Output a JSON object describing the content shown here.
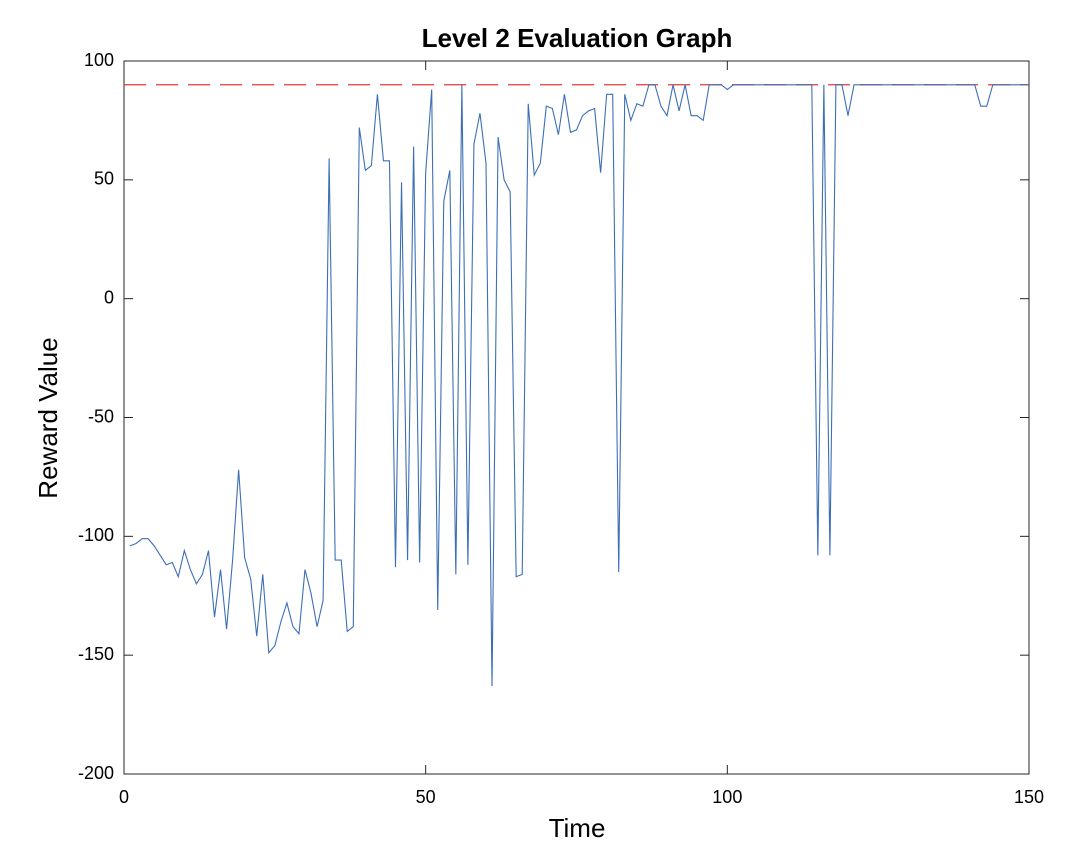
{
  "chart_data": {
    "type": "line",
    "title": "Level 2 Evaluation Graph",
    "x_label": "Time",
    "y_label": "Reward Value",
    "x": [
      1,
      2,
      3,
      4,
      5,
      6,
      7,
      8,
      9,
      10,
      11,
      12,
      13,
      14,
      15,
      16,
      17,
      18,
      19,
      20,
      21,
      22,
      23,
      24,
      25,
      26,
      27,
      28,
      29,
      30,
      31,
      32,
      33,
      34,
      35,
      36,
      37,
      38,
      39,
      40,
      41,
      42,
      43,
      44,
      45,
      46,
      47,
      48,
      49,
      50,
      51,
      52,
      53,
      54,
      55,
      56,
      57,
      58,
      59,
      60,
      61,
      62,
      63,
      64,
      65,
      66,
      67,
      68,
      69,
      70,
      71,
      72,
      73,
      74,
      75,
      76,
      77,
      78,
      79,
      80,
      81,
      82,
      83,
      84,
      85,
      86,
      87,
      88,
      89,
      90,
      91,
      92,
      93,
      94,
      95,
      96,
      97,
      98,
      99,
      100,
      101,
      102,
      103,
      104,
      105,
      106,
      107,
      108,
      109,
      110,
      111,
      112,
      113,
      114,
      115,
      116,
      117,
      118,
      119,
      120,
      121,
      122,
      123,
      124,
      125,
      126,
      127,
      128,
      129,
      130,
      131,
      132,
      133,
      134,
      135,
      136,
      137,
      138,
      139,
      140,
      141,
      142,
      143,
      144,
      145,
      146,
      147,
      148,
      149,
      150
    ],
    "series": [
      {
        "color": "#3c6fb6",
        "values": [
          -104,
          -103,
          -101,
          -101,
          -104,
          -108,
          -112,
          -111,
          -117,
          -106,
          -114,
          -120,
          -116,
          -106,
          -134,
          -114,
          -139,
          -110,
          -72,
          -109,
          -118,
          -142,
          -116,
          -149,
          -146,
          -136,
          -128,
          -138,
          -141,
          -114,
          -124,
          -138,
          -127,
          59,
          -110,
          -110,
          -140,
          -138,
          72,
          54,
          56,
          86,
          58,
          58,
          -113,
          49,
          -110,
          64,
          -111,
          53,
          88,
          -131,
          41,
          54,
          -116,
          90,
          -112,
          65,
          78,
          57,
          -163,
          68,
          50,
          45,
          -117,
          -116,
          82,
          52,
          57,
          81,
          80,
          69,
          86,
          70,
          71,
          77,
          79,
          80,
          53,
          86,
          86,
          -115,
          86,
          75,
          82,
          81,
          90,
          90,
          81,
          77,
          90,
          79,
          90,
          77,
          77,
          75,
          90,
          90,
          90,
          88,
          90,
          90,
          90,
          90,
          90,
          90,
          90,
          90,
          90,
          90,
          90,
          90,
          90,
          90,
          -108,
          90,
          -108,
          90,
          90,
          77,
          90,
          90,
          90,
          90,
          90,
          90,
          90,
          90,
          90,
          90,
          90,
          90,
          90,
          90,
          90,
          90,
          90,
          90,
          90,
          90,
          90,
          81,
          81,
          90,
          90,
          90,
          90,
          90,
          90,
          90
        ]
      }
    ],
    "reference_line": {
      "value": 90,
      "color": "#e03a3a"
    },
    "xlim": [
      0,
      150
    ],
    "xticks": [
      0,
      50,
      100,
      150
    ],
    "ylim": [
      -200,
      100
    ],
    "yticks": [
      -200,
      -150,
      -100,
      -50,
      0,
      50,
      100
    ]
  }
}
